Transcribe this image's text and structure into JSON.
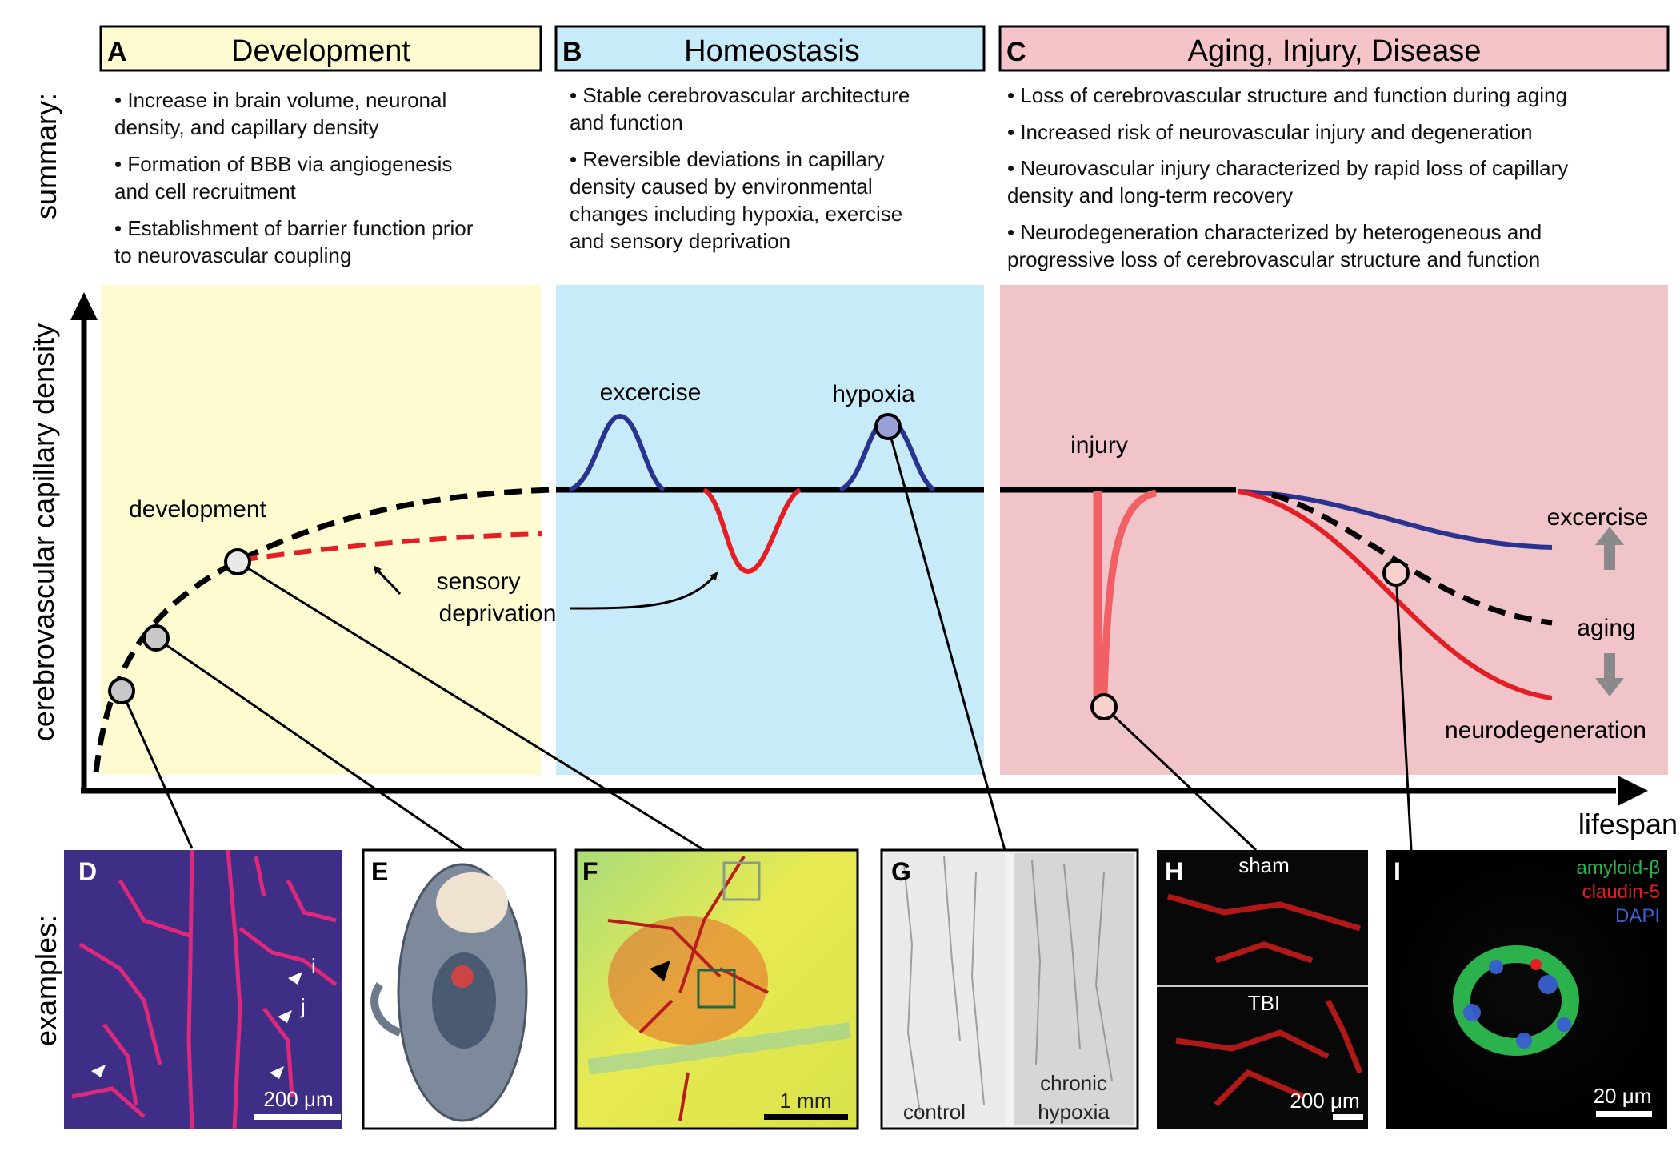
{
  "headers": [
    {
      "letter": "A",
      "title": "Development",
      "color": "#fdfbcf"
    },
    {
      "letter": "B",
      "title": "Homeostasis",
      "color": "#c8ebfa"
    },
    {
      "letter": "C",
      "title": "Aging, Injury, Disease",
      "color": "#f5c4c8"
    }
  ],
  "summary_label": "summary:",
  "examples_label": "examples:",
  "summaries": {
    "A": [
      "• Increase in brain volume, neuronal",
      "density, and capillary density",
      "• Formation of BBB via angiogenesis",
      "and cell recruitment",
      "• Establishment of barrier function prior",
      "to neurovascular coupling"
    ],
    "B": [
      "• Stable cerebrovascular architecture",
      "and function",
      "• Reversible deviations in capillary",
      "density caused by environmental",
      "changes including hypoxia, exercise",
      "and sensory deprivation"
    ],
    "C": [
      "• Loss of cerebrovascular structure and function during aging",
      "• Increased risk of neurovascular injury and degeneration",
      "• Neurovascular injury characterized by rapid loss of capillary",
      "density and long-term recovery",
      "• Neurodegeneration characterized by heterogeneous and",
      "progressive loss of cerebrovascular structure and function"
    ]
  },
  "axes": {
    "y_label": "cerebrovascular capillary density",
    "x_label": "lifespan"
  },
  "plot_labels": {
    "development": "development",
    "sensory_line1": "sensory",
    "sensory_line2": "deprivation",
    "exercise_b": "excercise",
    "hypoxia": "hypoxia",
    "injury": "injury",
    "exercise_c": "excercise",
    "aging": "aging",
    "neurodegeneration": "neurodegeneration"
  },
  "examples": [
    {
      "letter": "D",
      "scale": "200 μm",
      "marks": [
        "i",
        "j"
      ]
    },
    {
      "letter": "E"
    },
    {
      "letter": "F",
      "scale": "1 mm"
    },
    {
      "letter": "G",
      "left_label": "control",
      "right_label_1": "chronic",
      "right_label_2": "hypoxia"
    },
    {
      "letter": "H",
      "top_label": "sham",
      "mid_label": "TBI",
      "scale": "200 μm"
    },
    {
      "letter": "I",
      "stain1": "amyloid-β",
      "stain2": "claudin-5",
      "stain3": "DAPI",
      "scale": "20 μm"
    }
  ],
  "colors": {
    "development_bg": "#fdfbcf",
    "homeostasis_bg": "#c8ebfa",
    "aging_bg": "#f5c4c8",
    "curve_black": "#000000",
    "curve_red": "#e31e24",
    "curve_blue": "#2a3490",
    "stain_green": "#2bb24c",
    "stain_red": "#e31e24",
    "stain_blue": "#3a5fd0"
  }
}
